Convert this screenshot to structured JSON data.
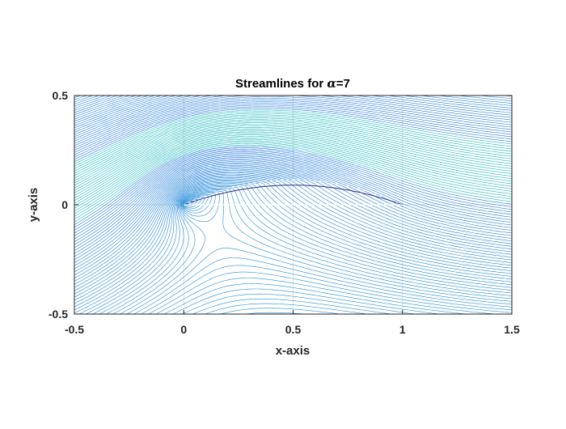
{
  "chart_data": {
    "type": "contour",
    "title_prefix": "Streamlines for ",
    "title_symbol": "α",
    "title_suffix": "=7",
    "xlabel": "x-axis",
    "ylabel": "y-axis",
    "xlim": [
      -0.5,
      1.5
    ],
    "ylim": [
      -0.5,
      0.5
    ],
    "xticks": [
      -0.5,
      0,
      0.5,
      1,
      1.5
    ],
    "xtick_labels": [
      "-0.5",
      "0",
      "0.5",
      "1",
      "1.5"
    ],
    "yticks": [
      -0.5,
      0,
      0.5
    ],
    "ytick_labels": [
      "-0.5",
      "0",
      "0.5"
    ],
    "grid": true,
    "alpha_deg": 7,
    "airfoil": {
      "chord_x": [
        0,
        1
      ],
      "max_camber": 0.12,
      "max_camber_x": 0.5,
      "upper_surface_marker": "white dots"
    },
    "colors": {
      "low": "#3b2fd9",
      "mid": "#1f8fd8",
      "high": "#22c9b0",
      "axes": "#262626",
      "grid": "#dcdcdc"
    }
  }
}
